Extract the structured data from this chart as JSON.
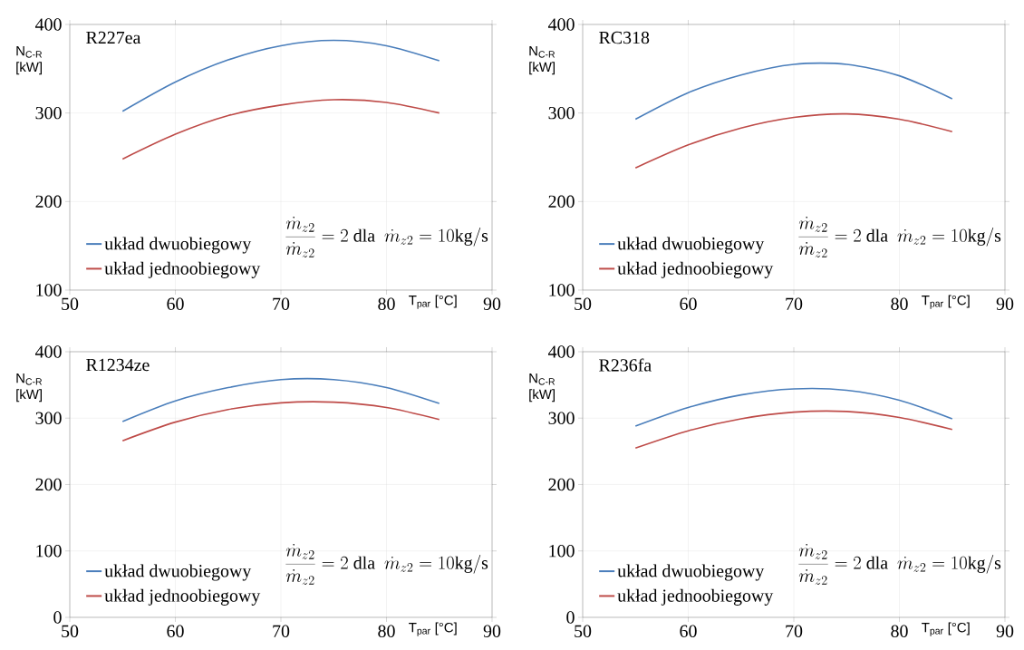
{
  "chart_data": [
    {
      "type": "line",
      "title": "R227ea",
      "xlabel": "T$_{par}$ [°C]",
      "ylabel": "N$_{C-R}$ [kW]",
      "x": [
        55,
        60,
        65,
        70,
        75,
        80,
        85
      ],
      "xlim": [
        50,
        90
      ],
      "ylim": [
        100,
        400
      ],
      "xticks": [
        50,
        60,
        70,
        80,
        90
      ],
      "yticks": [
        100,
        200,
        300,
        400
      ],
      "grid": true,
      "legend": "bottom left",
      "line_style": "solid",
      "annotations": [
        "\\frac{\\dot{m}_{z2}}{\\dot{m}_{z2}} = 2\\ \\mathrm{dla}\\ \\ \\dot{m}_{z2} = 10\\mathrm{kg/s}"
      ],
      "series": [
        {
          "name": "układ dwuobiegowy",
          "color": "#4a7ebb",
          "values": [
            302,
            335,
            360,
            376,
            382,
            376,
            359
          ]
        },
        {
          "name": "układ jednoobiegowy",
          "color": "#be4b48",
          "values": [
            248,
            276,
            297,
            309,
            315,
            312,
            300
          ]
        }
      ]
    },
    {
      "type": "line",
      "title": "RC318",
      "xlabel": "T$_{par}$ [°C]",
      "ylabel": "N$_{C-R}$ [kW]",
      "x": [
        55,
        60,
        65,
        70,
        75,
        80,
        85
      ],
      "xlim": [
        50,
        90
      ],
      "ylim": [
        100,
        400
      ],
      "xticks": [
        50,
        60,
        70,
        80,
        90
      ],
      "yticks": [
        100,
        200,
        300,
        400
      ],
      "grid": true,
      "legend": "bottom left",
      "line_style": "solid",
      "annotations": [
        "\\frac{\\dot{m}_{z2}}{\\dot{m}_{z2}} = 2\\ \\mathrm{dla}\\ \\ \\dot{m}_{z2} = 10\\mathrm{kg/s}"
      ],
      "series": [
        {
          "name": "układ dwuobiegowy",
          "color": "#4a7ebb",
          "values": [
            293,
            323,
            343,
            355,
            355,
            342,
            316
          ]
        },
        {
          "name": "układ jednoobiegowy",
          "color": "#be4b48",
          "values": [
            238,
            264,
            283,
            295,
            299,
            293,
            279
          ]
        }
      ]
    },
    {
      "type": "line",
      "title": "R1234ze",
      "xlabel": "T$_{par}$ [°C]",
      "ylabel": "N$_{C-R}$ [kW]",
      "x": [
        55,
        60,
        65,
        70,
        75,
        80,
        85
      ],
      "xlim": [
        50,
        90
      ],
      "ylim": [
        0,
        400
      ],
      "xticks": [
        50,
        60,
        70,
        80,
        90
      ],
      "yticks": [
        0,
        100,
        200,
        300,
        400
      ],
      "grid": true,
      "legend": "bottom left",
      "line_style": "solid",
      "annotations": [
        "\\frac{\\dot{m}_{z2}}{\\dot{m}_{z2}} = 2\\ \\mathrm{dla}\\ \\ \\dot{m}_{z2} = 10\\mathrm{kg/s}"
      ],
      "series": [
        {
          "name": "układ dwuobiegowy",
          "color": "#4a7ebb",
          "values": [
            295,
            326,
            346,
            358,
            358,
            346,
            322
          ]
        },
        {
          "name": "układ jednoobiegowy",
          "color": "#be4b48",
          "values": [
            266,
            294,
            313,
            323,
            324,
            316,
            298
          ]
        }
      ]
    },
    {
      "type": "line",
      "title": "R236fa",
      "xlabel": "T$_{par}$ [°C]",
      "ylabel": "N$_{C-R}$ [kW]",
      "x": [
        55,
        60,
        65,
        70,
        75,
        80,
        85
      ],
      "xlim": [
        50,
        90
      ],
      "ylim": [
        0,
        400
      ],
      "xticks": [
        50,
        60,
        70,
        80,
        90
      ],
      "yticks": [
        0,
        100,
        200,
        300,
        400
      ],
      "grid": true,
      "legend": "bottom left",
      "line_style": "solid",
      "annotations": [
        "\\frac{\\dot{m}_{z2}}{\\dot{m}_{z2}} = 2\\ \\mathrm{dla}\\ \\ \\dot{m}_{z2} = 10\\mathrm{kg/s}"
      ],
      "series": [
        {
          "name": "układ dwuobiegowy",
          "color": "#4a7ebb",
          "values": [
            288,
            316,
            335,
            344,
            342,
            327,
            299
          ]
        },
        {
          "name": "układ jednoobiegowy",
          "color": "#be4b48",
          "values": [
            255,
            281,
            299,
            309,
            310,
            301,
            283
          ]
        }
      ]
    }
  ]
}
